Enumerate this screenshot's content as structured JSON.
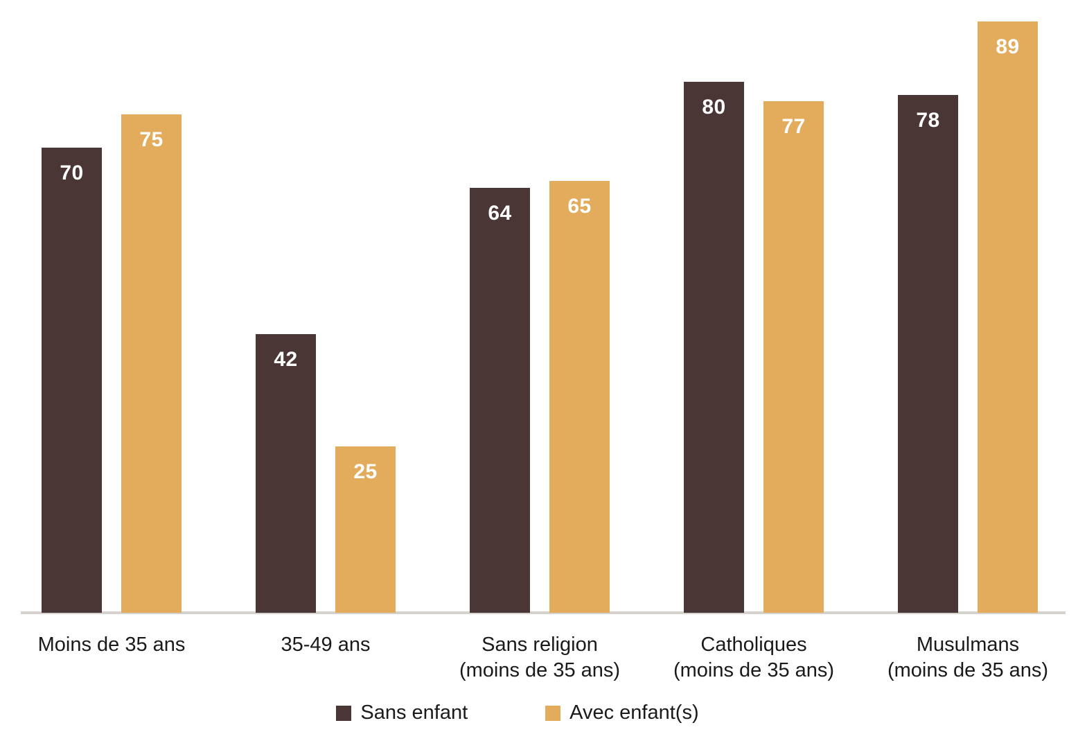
{
  "chart_data": {
    "type": "bar",
    "title": "",
    "xlabel": "",
    "ylabel": "",
    "categories": [
      "Moins de 35 ans",
      "35-49 ans",
      "Sans religion (moins de 35 ans)",
      "Catholiques (moins de 35 ans)",
      "Musulmans (moins de 35 ans)"
    ],
    "category_lines": [
      [
        "Moins de 35 ans"
      ],
      [
        "35-49 ans"
      ],
      [
        "Sans religion",
        "(moins de 35 ans)"
      ],
      [
        "Catholiques",
        "(moins de 35 ans)"
      ],
      [
        "Musulmans",
        "(moins de 35 ans)"
      ]
    ],
    "series": [
      {
        "name": "Sans enfant",
        "color": "#4B3636",
        "values": [
          70,
          42,
          64,
          80,
          78
        ]
      },
      {
        "name": "Avec enfant(s)",
        "color": "#E3AC5C",
        "values": [
          75,
          25,
          65,
          77,
          89
        ]
      }
    ],
    "value_labels_shown": true,
    "ylim": [
      0,
      92
    ],
    "grid": false,
    "y_axis_shown": false,
    "legend_position": "bottom"
  },
  "legend": {
    "items": [
      {
        "label": "Sans enfant",
        "color": "#4B3636"
      },
      {
        "label": "Avec enfant(s)",
        "color": "#E3AC5C"
      }
    ]
  },
  "colors": {
    "background": "#FFFFFF",
    "axis_line": "#D5D2CD",
    "category_text": "#1A1A1A",
    "value_text": "#FFFFFF"
  }
}
